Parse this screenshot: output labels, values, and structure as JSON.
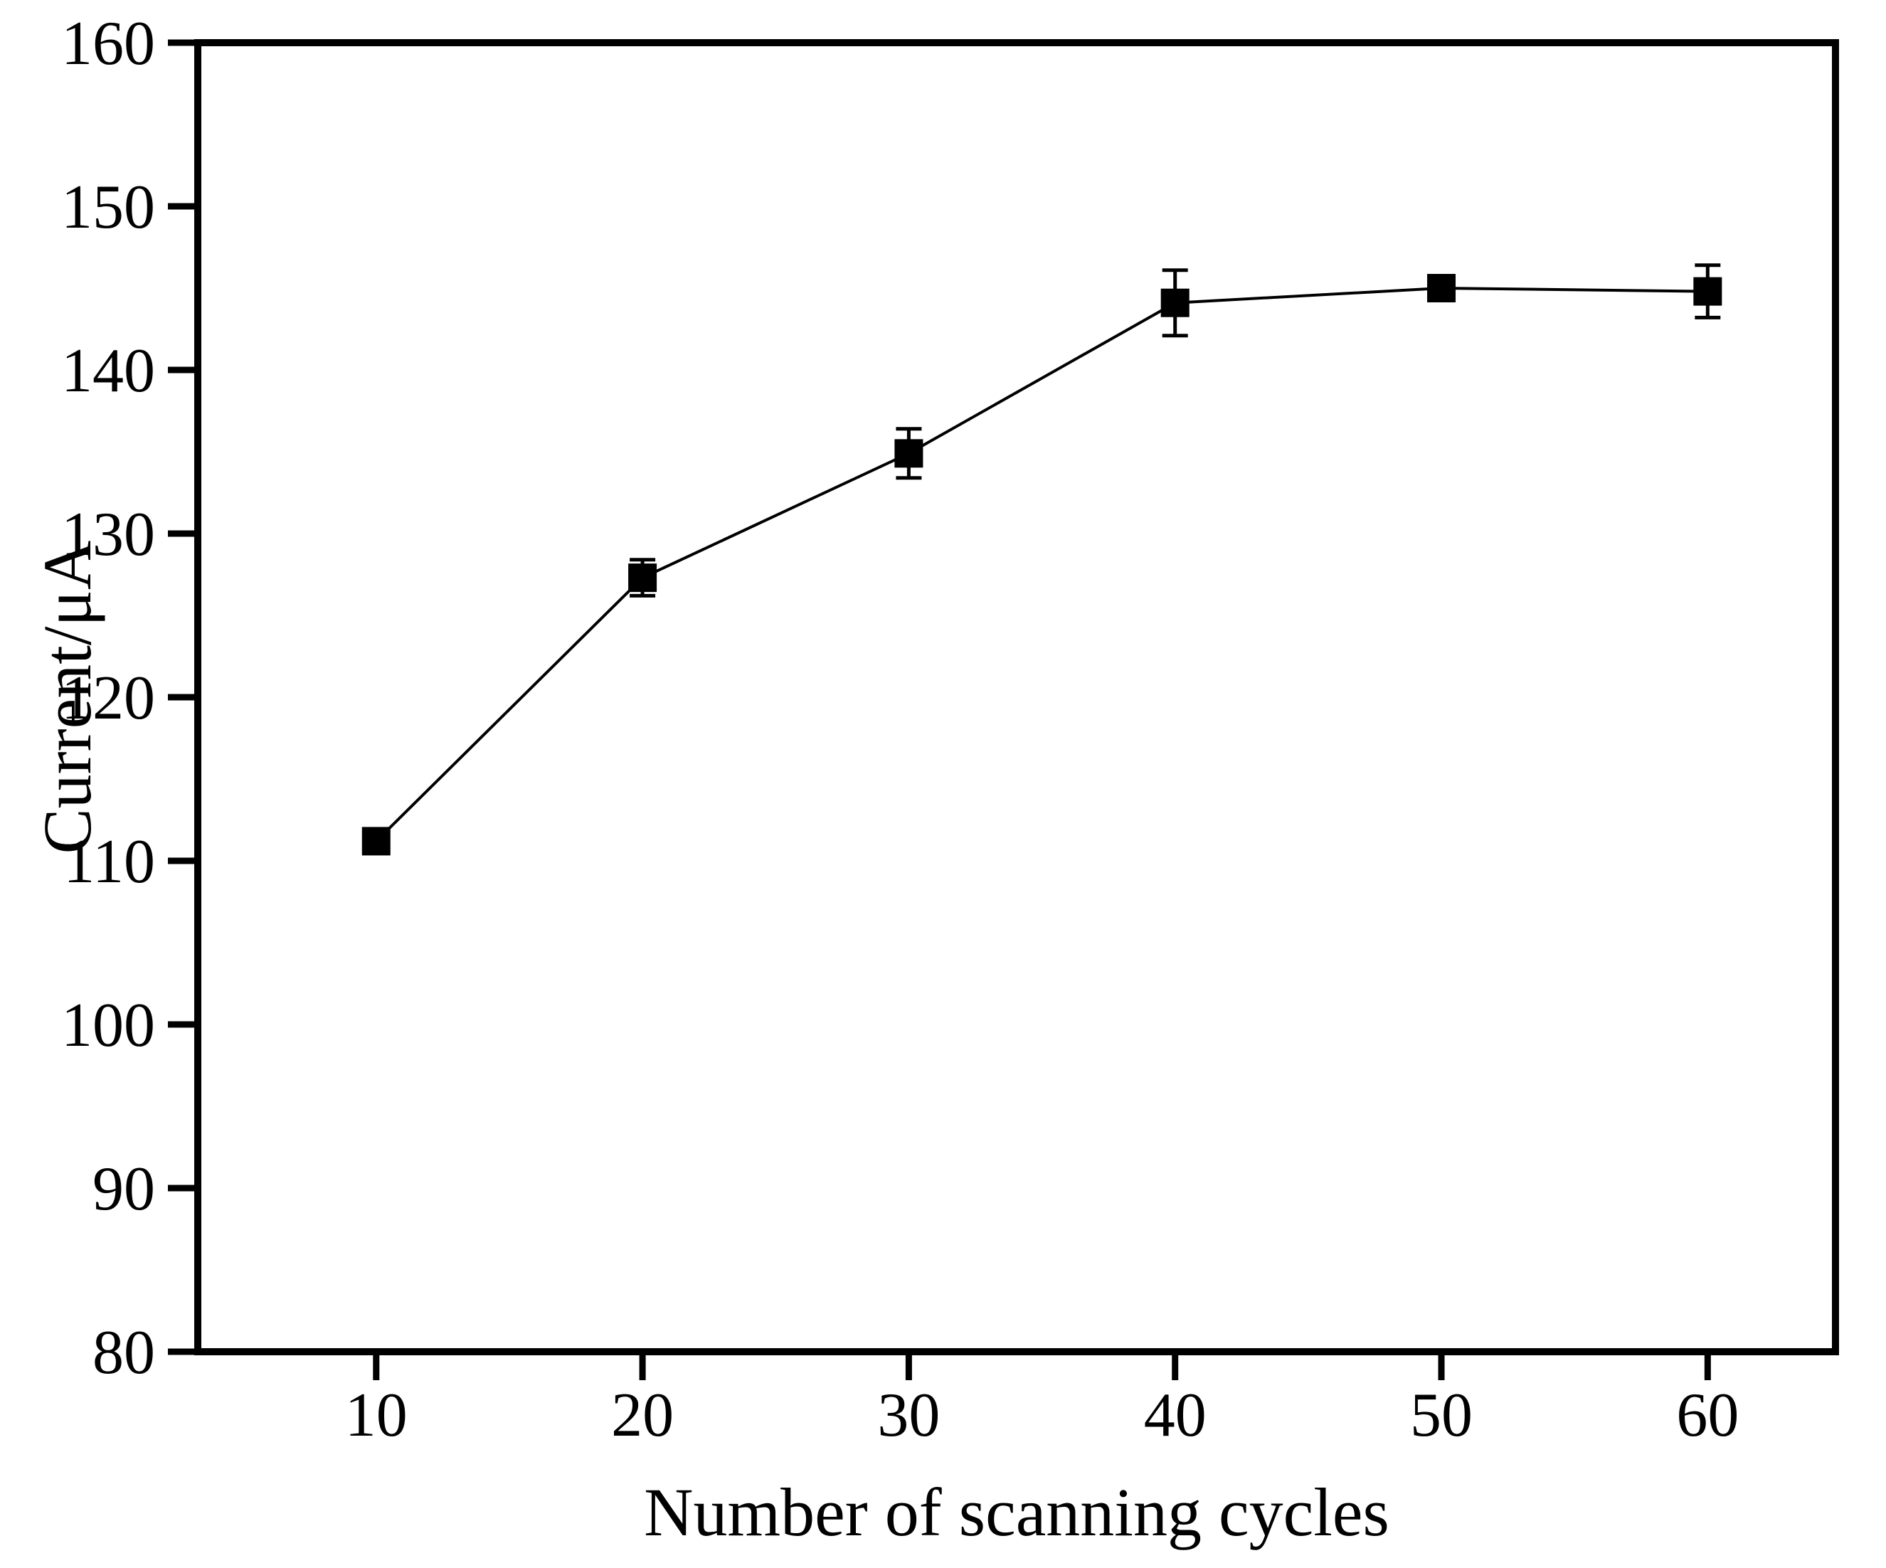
{
  "figure": {
    "background": "#ffffff",
    "ink_color": "#000000"
  },
  "chart_data": {
    "type": "line",
    "title": "",
    "xlabel": "Number of scanning cycles",
    "ylabel": "Current/μA",
    "x": [
      10,
      20,
      30,
      40,
      50,
      60
    ],
    "y": [
      111.2,
      127.3,
      134.9,
      144.1,
      145.0,
      144.8
    ],
    "y_err": [
      0.5,
      1.1,
      1.5,
      2.0,
      0.3,
      1.6
    ],
    "x_ticks": [
      10,
      20,
      30,
      40,
      50,
      60
    ],
    "y_ticks": [
      80,
      90,
      100,
      110,
      120,
      130,
      140,
      150,
      160
    ],
    "xlim": [
      3.3,
      64.8
    ],
    "ylim": [
      80,
      160
    ],
    "marker": "filled-square",
    "line_color": "#000000",
    "marker_color": "#000000",
    "error_bar_color": "#000000",
    "grid": false,
    "legend": null
  }
}
